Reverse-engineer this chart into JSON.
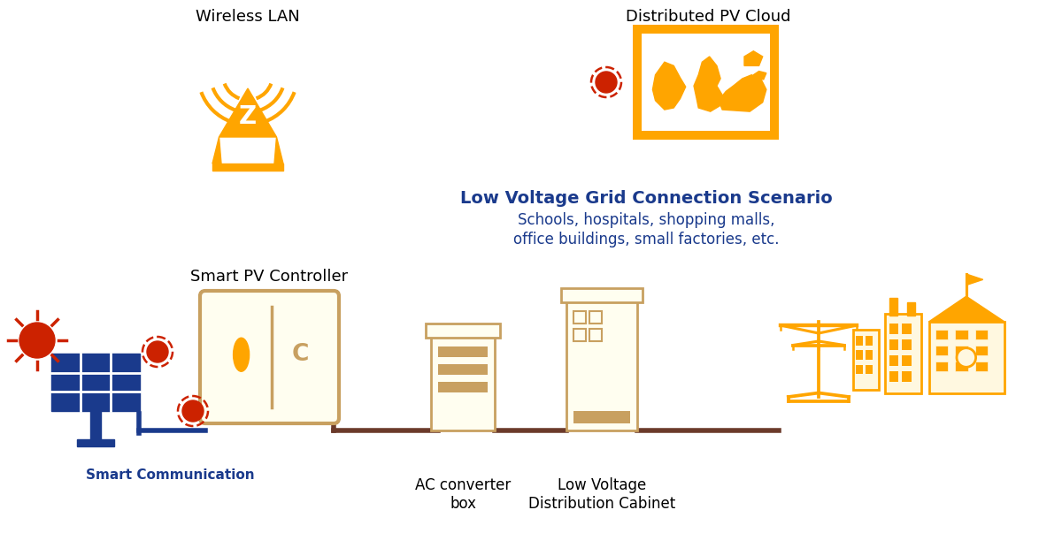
{
  "background_color": "#ffffff",
  "orange": "#FFA500",
  "gold": "#C8A060",
  "red": "#CC2200",
  "blue": "#1a3a8c",
  "navy": "#1a3a8c",
  "brown": "#6B3A2A",
  "wireless_lan_label": "Wireless LAN",
  "pv_cloud_label": "Distributed PV Cloud",
  "scenario_title": "Low Voltage Grid Connection Scenario",
  "scenario_sub1": "Schools, hospitals, shopping malls,",
  "scenario_sub2": "office buildings, small factories, etc.",
  "smart_pv_label": "Smart PV Controller",
  "smart_comm_label": "Smart Communication",
  "ac_converter_label": "AC converter\nbox",
  "lv_cabinet_label": "Low Voltage\nDistribution Cabinet",
  "figw": 12.0,
  "figh": 6.03,
  "dpi": 100
}
